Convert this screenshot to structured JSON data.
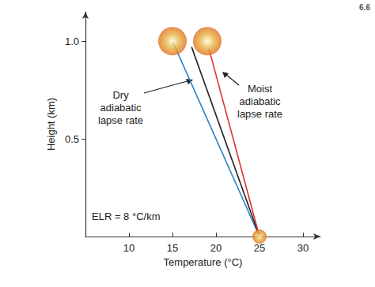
{
  "chart_data": {
    "type": "line",
    "figure_number": "6.6",
    "x_label": "Temperature (°C)",
    "y_label": "Height (km)",
    "xlim": [
      5,
      32
    ],
    "xticks": [
      10,
      15,
      20,
      25,
      30
    ],
    "ylim": [
      0,
      1.15
    ],
    "yticks": [
      0.5,
      {
        "value": 1.0,
        "label": "1.0"
      }
    ],
    "grid": false,
    "annotations": [
      "Dry\nadiabatic\nlapse rate",
      "Moist\nadiabatic\nlapse rate",
      "ELR = 8 °C/km"
    ],
    "series": [
      {
        "type": "line",
        "color": "#2f7fc6",
        "line_style": "solid",
        "x": [
          25,
          15
        ],
        "values": [
          0,
          1.0
        ]
      },
      {
        "type": "line",
        "color": "#222222",
        "line_style": "solid",
        "x": [
          25,
          17.2
        ],
        "values": [
          0,
          0.97
        ]
      },
      {
        "type": "line",
        "color": "#e0302a",
        "line_style": "solid",
        "x": [
          25,
          19.2
        ],
        "values": [
          0,
          0.96
        ]
      },
      {
        "type": "scatter",
        "color": "#e9b949",
        "marker": "circle",
        "x": [
          15,
          19
        ],
        "values": [
          1.0,
          1.0
        ]
      },
      {
        "type": "scatter",
        "color": "#e9b949",
        "marker": "circle",
        "x": [
          25
        ],
        "values": [
          0
        ]
      }
    ]
  }
}
